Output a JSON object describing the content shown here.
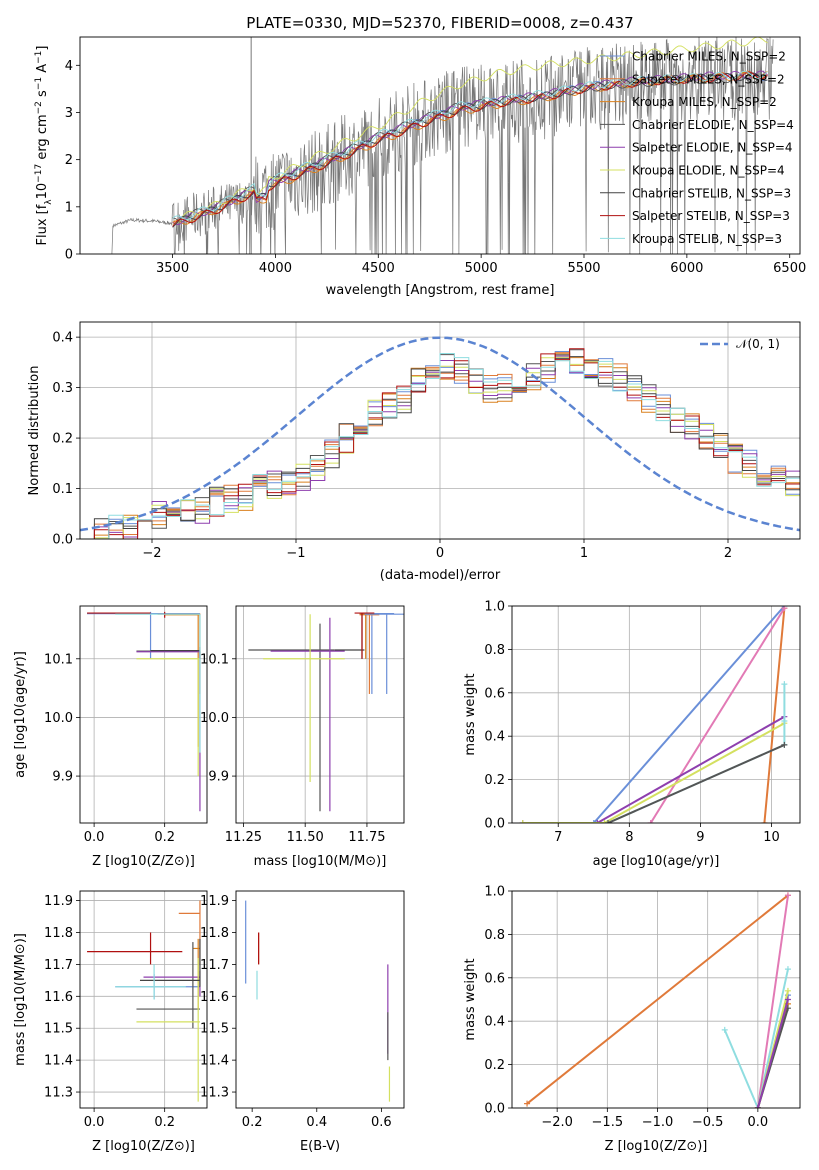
{
  "colors": [
    "#6a8fd8",
    "#e07a3a",
    "#d9801e",
    "#555555",
    "#8e3fae",
    "#d4e060",
    "#444444",
    "#b01010",
    "#8fdde0"
  ],
  "chart_data": [
    {
      "id": "spectrum",
      "type": "line",
      "title": "PLATE=0330, MJD=52370, FIBERID=0008, z=0.437",
      "xlabel": "wavelength [Angstrom, rest frame]",
      "ylabel": "Flux [f$_\\lambda$ 10$^{-17}$ erg cm$^{-2}$ s$^{-1}$ A$^{-1}$]",
      "ylabel_parts": [
        "Flux [f",
        "λ",
        "10",
        "−17",
        " erg cm",
        "−2",
        " s",
        "−1",
        " A",
        "−1",
        "]"
      ],
      "xlim": [
        3050,
        6550
      ],
      "ylim": [
        0,
        4.6
      ],
      "xticks": [
        "3500",
        "4000",
        "4500",
        "5000",
        "5500",
        "6000",
        "6500"
      ],
      "yticks": [
        "0",
        "1",
        "2",
        "3",
        "4"
      ],
      "legend": [
        "Chabrier MILES, N_SSP=2",
        "Salpeter MILES, N_SSP=2",
        "Kroupa MILES, N_SSP=2",
        "Chabrier ELODIE, N_SSP=4",
        "Salpeter ELODIE, N_SSP=4",
        "Kroupa ELODIE, N_SSP=4",
        "Chabrier STELIB, N_SSP=3",
        "Salpeter STELIB, N_SSP=3",
        "Kroupa STELIB, N_SSP=3"
      ],
      "legend_placement": "upper right",
      "data_series": {
        "name": "data",
        "x": [
          3210,
          3300,
          3400,
          3500,
          3600,
          3700,
          3800,
          3900,
          4000,
          4100,
          4200,
          4300,
          4400,
          4500,
          4600,
          4700,
          4800,
          4900,
          5000,
          5100,
          5200,
          5300,
          5400,
          5500,
          5600,
          5700,
          5800,
          5900,
          6000,
          6100,
          6200,
          6300,
          6400
        ],
        "y": [
          0.6,
          0.72,
          0.7,
          0.65,
          0.8,
          0.95,
          1.05,
          1.25,
          1.4,
          1.6,
          1.75,
          2.0,
          2.2,
          2.45,
          2.65,
          2.8,
          2.95,
          3.1,
          3.15,
          3.2,
          3.25,
          3.3,
          3.35,
          3.5,
          3.55,
          3.6,
          3.65,
          3.7,
          3.7,
          3.75,
          3.7,
          3.8,
          3.75
        ]
      },
      "model_series": [
        {
          "x": [
            3500,
            3700,
            3900,
            4100,
            4300,
            4500,
            4700,
            4900,
            5100,
            5300,
            5500,
            5700,
            5900,
            6100,
            6300,
            6400
          ],
          "y": [
            0.65,
            0.95,
            1.35,
            1.7,
            2.05,
            2.45,
            2.8,
            3.1,
            3.25,
            3.35,
            3.55,
            3.65,
            3.7,
            3.75,
            3.75,
            3.75
          ]
        },
        {
          "x": [
            3500,
            3700,
            3900,
            4100,
            4300,
            4500,
            4700,
            4900,
            5100,
            5300,
            5500,
            5700,
            5900,
            6100,
            6300,
            6400
          ],
          "y": [
            0.62,
            0.9,
            1.3,
            1.65,
            2.0,
            2.4,
            2.75,
            3.05,
            3.2,
            3.3,
            3.5,
            3.6,
            3.7,
            3.75,
            3.8,
            3.8
          ]
        },
        {
          "x": [
            3500,
            3700,
            3900,
            4100,
            4300,
            4500,
            4700,
            4900,
            5100,
            5300,
            5500,
            5700,
            5900,
            6100,
            6300,
            6400
          ],
          "y": [
            0.6,
            0.92,
            1.28,
            1.62,
            2.0,
            2.38,
            2.72,
            3.02,
            3.18,
            3.3,
            3.48,
            3.6,
            3.68,
            3.72,
            3.78,
            3.8
          ]
        },
        {
          "x": [
            3500,
            3700,
            3900,
            4100,
            4300,
            4500,
            4700,
            4900,
            5100,
            5300,
            5500,
            5700,
            5900,
            6100,
            6300,
            6400
          ],
          "y": [
            0.7,
            1.0,
            1.4,
            1.75,
            2.1,
            2.5,
            2.85,
            3.15,
            3.25,
            3.35,
            3.5,
            3.6,
            3.65,
            3.7,
            3.72,
            3.7
          ]
        },
        {
          "x": [
            3500,
            3700,
            3900,
            4100,
            4300,
            4500,
            4700,
            4900,
            5100,
            5300,
            5500,
            5700,
            5900,
            6100,
            6300,
            6400
          ],
          "y": [
            0.66,
            0.96,
            1.36,
            1.72,
            2.08,
            2.48,
            2.82,
            3.12,
            3.26,
            3.38,
            3.55,
            3.66,
            3.72,
            3.78,
            3.8,
            3.8
          ]
        },
        {
          "x": [
            3500,
            3700,
            3900,
            4100,
            4300,
            4500,
            4700,
            4900,
            5100,
            5300,
            5500,
            5700,
            5900,
            6100,
            6300,
            6400
          ],
          "y": [
            0.7,
            1.02,
            1.45,
            1.85,
            2.3,
            2.7,
            3.2,
            3.6,
            3.85,
            4.0,
            4.1,
            4.2,
            4.3,
            4.4,
            4.5,
            4.55
          ]
        },
        {
          "x": [
            3500,
            3700,
            3900,
            4100,
            4300,
            4500,
            4700,
            4900,
            5100,
            5300,
            5500,
            5700,
            5900,
            6100,
            6300,
            6400
          ],
          "y": [
            0.64,
            0.94,
            1.34,
            1.7,
            2.04,
            2.44,
            2.78,
            3.08,
            3.22,
            3.34,
            3.52,
            3.62,
            3.7,
            3.74,
            3.76,
            3.76
          ]
        },
        {
          "x": [
            3500,
            3700,
            3900,
            4100,
            4300,
            4500,
            4700,
            4900,
            5100,
            5300,
            5500,
            5700,
            5900,
            6100,
            6300,
            6400
          ],
          "y": [
            0.6,
            0.9,
            1.3,
            1.66,
            2.0,
            2.4,
            2.74,
            3.04,
            3.2,
            3.32,
            3.5,
            3.6,
            3.68,
            3.72,
            3.78,
            3.8
          ]
        },
        {
          "x": [
            3500,
            3700,
            3900,
            4100,
            4300,
            4500,
            4700,
            4900,
            5100,
            5300,
            5500,
            5700,
            5900,
            6100,
            6300,
            6400
          ],
          "y": [
            0.7,
            1.0,
            1.42,
            1.78,
            2.12,
            2.52,
            2.86,
            3.15,
            3.28,
            3.4,
            3.56,
            3.66,
            3.72,
            3.76,
            3.8,
            3.8
          ]
        }
      ]
    },
    {
      "id": "residuals",
      "type": "histogram",
      "xlabel": "(data-model)/error",
      "ylabel": "Normed distribution",
      "xlim": [
        -2.5,
        2.5
      ],
      "ylim": [
        0,
        0.43
      ],
      "xticks": [
        "−2",
        "−1",
        "0",
        "1",
        "2"
      ],
      "yticks": [
        "0.0",
        "0.1",
        "0.2",
        "0.3",
        "0.4"
      ],
      "legend": [
        "𝒩(0, 1)"
      ],
      "legend_placement": "upper right",
      "gaussian": {
        "mean": 0,
        "sigma": 1
      },
      "bin_width": 0.1,
      "bin_start": -2.5,
      "hist_values": [
        0.01,
        0.015,
        0.02,
        0.025,
        0.03,
        0.045,
        0.05,
        0.055,
        0.06,
        0.075,
        0.08,
        0.085,
        0.1,
        0.11,
        0.115,
        0.12,
        0.14,
        0.17,
        0.2,
        0.22,
        0.25,
        0.26,
        0.28,
        0.31,
        0.33,
        0.34,
        0.33,
        0.31,
        0.3,
        0.3,
        0.31,
        0.32,
        0.34,
        0.36,
        0.35,
        0.34,
        0.33,
        0.32,
        0.3,
        0.28,
        0.26,
        0.24,
        0.22,
        0.2,
        0.18,
        0.16,
        0.15,
        0.13,
        0.12,
        0.11
      ]
    },
    {
      "id": "age-vs-Z",
      "type": "scatter",
      "xlabel": "Z [log10(Z/Z⊙)]",
      "ylabel": "age  [log10(age/yr)]",
      "xlim": [
        -0.04,
        0.32
      ],
      "ylim": [
        9.82,
        10.19
      ],
      "xticks": [
        "0.0",
        "0.2"
      ],
      "yticks": [
        "9.9",
        "10.0",
        "10.1"
      ]
    },
    {
      "id": "age-vs-mass",
      "type": "scatter",
      "xlabel": "mass [log10(M/M⊙)]",
      "xlim": [
        11.22,
        11.9
      ],
      "ylim": [
        9.82,
        10.19
      ],
      "xticks": [
        "11.25",
        "11.50",
        "11.75"
      ],
      "yticks": [
        "9.9",
        "10.0",
        "10.1"
      ]
    },
    {
      "id": "weight-vs-age",
      "type": "line",
      "xlabel": "age  [log10(age/yr)]",
      "ylabel": "mass weight",
      "xlim": [
        6.35,
        10.4
      ],
      "ylim": [
        0,
        1.0
      ],
      "xticks": [
        "7",
        "8",
        "9",
        "10"
      ],
      "yticks": [
        "0.0",
        "0.2",
        "0.4",
        "0.6",
        "0.8",
        "1.0"
      ]
    },
    {
      "id": "mass-vs-Z",
      "type": "scatter",
      "xlabel": "Z [log10(Z/Z⊙)]",
      "ylabel": "mass [log10(M/M⊙)]",
      "xlim": [
        -0.04,
        0.32
      ],
      "ylim": [
        11.25,
        11.93
      ],
      "xticks": [
        "0.0",
        "0.2"
      ],
      "yticks": [
        "11.3",
        "11.4",
        "11.5",
        "11.6",
        "11.7",
        "11.8",
        "11.9"
      ]
    },
    {
      "id": "mass-vs-ebv",
      "type": "scatter",
      "xlabel": "E(B-V)",
      "xlim": [
        0.15,
        0.67
      ],
      "ylim": [
        11.25,
        11.93
      ],
      "xticks": [
        "0.2",
        "0.4",
        "0.6"
      ],
      "yticks": [
        "11.3",
        "11.4",
        "11.5",
        "11.6",
        "11.7",
        "11.8",
        "11.9"
      ]
    },
    {
      "id": "weight-vs-Z",
      "type": "line",
      "xlabel": "Z [log10(Z/Z⊙)]",
      "ylabel": "mass weight",
      "xlim": [
        -2.45,
        0.42
      ],
      "ylim": [
        0,
        1.0
      ],
      "xticks": [
        "−2.0",
        "−1.5",
        "−1.0",
        "−0.5",
        "0.0"
      ],
      "yticks": [
        "0.0",
        "0.2",
        "0.4",
        "0.6",
        "0.8",
        "1.0"
      ]
    }
  ]
}
